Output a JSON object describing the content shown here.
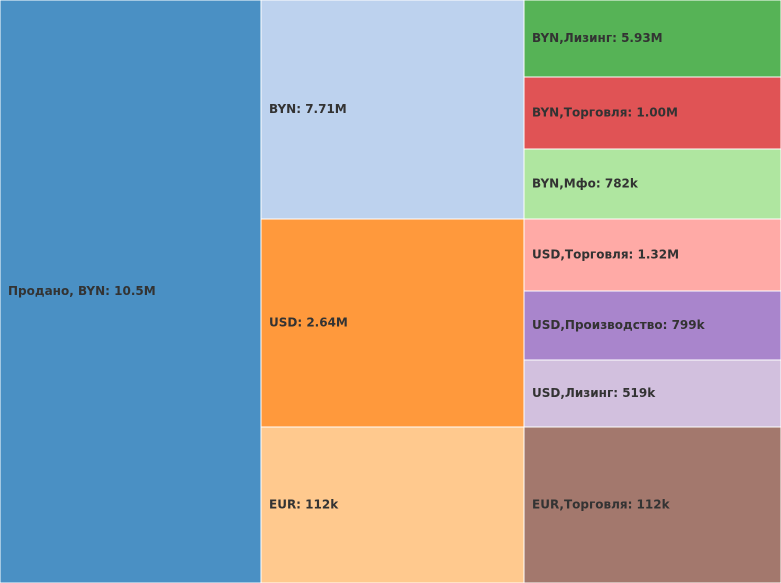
{
  "chart_data": {
    "type": "icicle",
    "root": {
      "label": "Продано, BYN: 10.5M",
      "value": 10500000,
      "color": "#4a90c4",
      "children": [
        {
          "label": "BYN: 7.71M",
          "value": 7710000,
          "color": "#bdd2ee",
          "children": [
            {
              "label": "BYN,Лизинг: 5.93M",
              "value": 5930000,
              "color": "#56b356"
            },
            {
              "label": "BYN,Торговля: 1.00M",
              "value": 1000000,
              "color": "#e05355"
            },
            {
              "label": "BYN,Мфо: 782k",
              "value": 782000,
              "color": "#afe6a0"
            }
          ]
        },
        {
          "label": "USD: 2.64M",
          "value": 2640000,
          "color": "#ff993c",
          "children": [
            {
              "label": "USD,Торговля: 1.32M",
              "value": 1320000,
              "color": "#ffaaa6"
            },
            {
              "label": "USD,Производство: 799k",
              "value": 799000,
              "color": "#a985cc"
            },
            {
              "label": "USD,Лизинг: 519k",
              "value": 519000,
              "color": "#d2c0de"
            }
          ]
        },
        {
          "label": "EUR: 112k",
          "value": 112000,
          "color": "#ffc98e",
          "children": [
            {
              "label": "EUR,Торговля: 112k",
              "value": 112000,
              "color": "#a3786d"
            }
          ]
        }
      ]
    }
  }
}
